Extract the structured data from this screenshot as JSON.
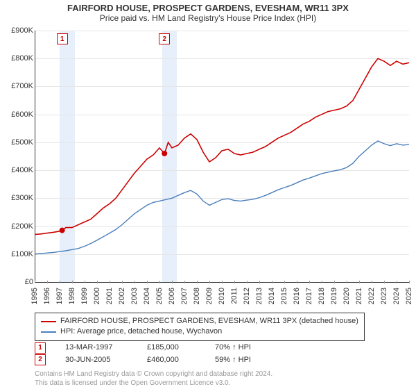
{
  "title": "FAIRFORD HOUSE, PROSPECT GARDENS, EVESHAM, WR11 3PX",
  "subtitle": "Price paid vs. HM Land Registry's House Price Index (HPI)",
  "type": "line",
  "background_color": "#ffffff",
  "grid_color": "#e6e6e6",
  "text_color": "#333333",
  "plot": {
    "x_years": [
      1995,
      1996,
      1997,
      1998,
      1999,
      2000,
      2001,
      2002,
      2003,
      2004,
      2005,
      2006,
      2007,
      2008,
      2009,
      2010,
      2011,
      2012,
      2013,
      2014,
      2015,
      2016,
      2017,
      2018,
      2019,
      2020,
      2021,
      2022,
      2023,
      2024,
      2025
    ],
    "x_min": 1995,
    "x_max": 2025,
    "y_min": 0,
    "y_max": 900000,
    "y_step": 100000,
    "y_prefix": "£",
    "y_suffix": "K",
    "tick_label_fontsize": 11,
    "title_fontsize": 13,
    "subtitle_fontsize": 12,
    "xlabel_rotation": -90
  },
  "shaded_bands": [
    {
      "from_year": 1997.0,
      "to_year": 1998.2,
      "color": "#e7effa"
    },
    {
      "from_year": 2005.2,
      "to_year": 2006.4,
      "color": "#e7effa"
    }
  ],
  "series": [
    {
      "name": "FAIRFORD HOUSE, PROSPECT GARDENS, EVESHAM, WR11 3PX (detached house)",
      "color": "#cc0000",
      "line_width": 1.6,
      "points": [
        [
          1995.0,
          170000
        ],
        [
          1995.5,
          172000
        ],
        [
          1996.0,
          175000
        ],
        [
          1996.5,
          178000
        ],
        [
          1997.0,
          182000
        ],
        [
          1997.2,
          185000
        ],
        [
          1997.5,
          195000
        ],
        [
          1998.0,
          195000
        ],
        [
          1998.5,
          205000
        ],
        [
          1999.0,
          215000
        ],
        [
          1999.5,
          225000
        ],
        [
          2000.0,
          245000
        ],
        [
          2000.5,
          265000
        ],
        [
          2001.0,
          280000
        ],
        [
          2001.5,
          300000
        ],
        [
          2002.0,
          330000
        ],
        [
          2002.5,
          360000
        ],
        [
          2003.0,
          390000
        ],
        [
          2003.5,
          415000
        ],
        [
          2004.0,
          440000
        ],
        [
          2004.5,
          455000
        ],
        [
          2005.0,
          480000
        ],
        [
          2005.4,
          460000
        ],
        [
          2005.7,
          500000
        ],
        [
          2006.0,
          480000
        ],
        [
          2006.5,
          490000
        ],
        [
          2007.0,
          515000
        ],
        [
          2007.5,
          530000
        ],
        [
          2008.0,
          510000
        ],
        [
          2008.5,
          465000
        ],
        [
          2009.0,
          430000
        ],
        [
          2009.5,
          445000
        ],
        [
          2010.0,
          470000
        ],
        [
          2010.5,
          475000
        ],
        [
          2011.0,
          460000
        ],
        [
          2011.5,
          455000
        ],
        [
          2012.0,
          460000
        ],
        [
          2012.5,
          465000
        ],
        [
          2013.0,
          475000
        ],
        [
          2013.5,
          485000
        ],
        [
          2014.0,
          500000
        ],
        [
          2014.5,
          515000
        ],
        [
          2015.0,
          525000
        ],
        [
          2015.5,
          535000
        ],
        [
          2016.0,
          550000
        ],
        [
          2016.5,
          565000
        ],
        [
          2017.0,
          575000
        ],
        [
          2017.5,
          590000
        ],
        [
          2018.0,
          600000
        ],
        [
          2018.5,
          610000
        ],
        [
          2019.0,
          615000
        ],
        [
          2019.5,
          620000
        ],
        [
          2020.0,
          630000
        ],
        [
          2020.5,
          650000
        ],
        [
          2021.0,
          690000
        ],
        [
          2021.5,
          730000
        ],
        [
          2022.0,
          770000
        ],
        [
          2022.5,
          800000
        ],
        [
          2023.0,
          790000
        ],
        [
          2023.5,
          775000
        ],
        [
          2024.0,
          790000
        ],
        [
          2024.5,
          780000
        ],
        [
          2025.0,
          785000
        ]
      ]
    },
    {
      "name": "HPI: Average price, detached house, Wychavon",
      "color": "#4a7ebb",
      "line_width": 1.4,
      "points": [
        [
          1995.0,
          100000
        ],
        [
          1995.5,
          102000
        ],
        [
          1996.0,
          104000
        ],
        [
          1996.5,
          106000
        ],
        [
          1997.0,
          109000
        ],
        [
          1997.5,
          112000
        ],
        [
          1998.0,
          116000
        ],
        [
          1998.5,
          120000
        ],
        [
          1999.0,
          128000
        ],
        [
          1999.5,
          138000
        ],
        [
          2000.0,
          150000
        ],
        [
          2000.5,
          162000
        ],
        [
          2001.0,
          175000
        ],
        [
          2001.5,
          188000
        ],
        [
          2002.0,
          205000
        ],
        [
          2002.5,
          225000
        ],
        [
          2003.0,
          245000
        ],
        [
          2003.5,
          260000
        ],
        [
          2004.0,
          275000
        ],
        [
          2004.5,
          285000
        ],
        [
          2005.0,
          290000
        ],
        [
          2005.5,
          295000
        ],
        [
          2006.0,
          300000
        ],
        [
          2006.5,
          310000
        ],
        [
          2007.0,
          320000
        ],
        [
          2007.5,
          328000
        ],
        [
          2008.0,
          315000
        ],
        [
          2008.5,
          290000
        ],
        [
          2009.0,
          275000
        ],
        [
          2009.5,
          285000
        ],
        [
          2010.0,
          295000
        ],
        [
          2010.5,
          298000
        ],
        [
          2011.0,
          292000
        ],
        [
          2011.5,
          290000
        ],
        [
          2012.0,
          293000
        ],
        [
          2012.5,
          296000
        ],
        [
          2013.0,
          302000
        ],
        [
          2013.5,
          310000
        ],
        [
          2014.0,
          320000
        ],
        [
          2014.5,
          330000
        ],
        [
          2015.0,
          338000
        ],
        [
          2015.5,
          345000
        ],
        [
          2016.0,
          355000
        ],
        [
          2016.5,
          365000
        ],
        [
          2017.0,
          372000
        ],
        [
          2017.5,
          380000
        ],
        [
          2018.0,
          388000
        ],
        [
          2018.5,
          393000
        ],
        [
          2019.0,
          398000
        ],
        [
          2019.5,
          402000
        ],
        [
          2020.0,
          410000
        ],
        [
          2020.5,
          425000
        ],
        [
          2021.0,
          450000
        ],
        [
          2021.5,
          470000
        ],
        [
          2022.0,
          490000
        ],
        [
          2022.5,
          505000
        ],
        [
          2023.0,
          495000
        ],
        [
          2023.5,
          488000
        ],
        [
          2024.0,
          495000
        ],
        [
          2024.5,
          490000
        ],
        [
          2025.0,
          492000
        ]
      ]
    }
  ],
  "sale_markers": [
    {
      "badge": "1",
      "year": 1997.2,
      "price": 185000,
      "color": "#cc0000"
    },
    {
      "badge": "2",
      "year": 2005.4,
      "price": 460000,
      "color": "#cc0000"
    }
  ],
  "legend": {
    "border_color": "#333333"
  },
  "sales": [
    {
      "badge": "1",
      "date": "13-MAR-1997",
      "price": "£185,000",
      "vs_hpi": "70% ↑ HPI",
      "badge_color": "#cc0000"
    },
    {
      "badge": "2",
      "date": "30-JUN-2005",
      "price": "£460,000",
      "vs_hpi": "59% ↑ HPI",
      "badge_color": "#cc0000"
    }
  ],
  "credit_line1": "Contains HM Land Registry data © Crown copyright and database right 2024.",
  "credit_line2": "This data is licensed under the Open Government Licence v3.0."
}
